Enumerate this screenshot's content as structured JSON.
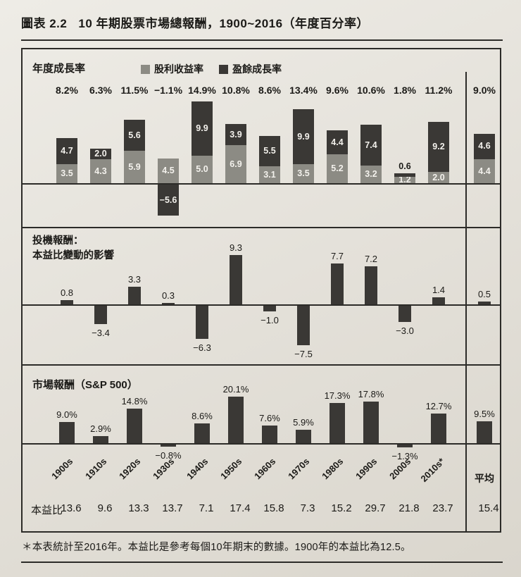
{
  "header": {
    "figure_label": "圖表 2.2",
    "title": "10 年期股票市場總報酬，1900~2016（年度百分率）"
  },
  "page": {
    "footnote": "＊本表統計至2016年。本益比是參考每個10年期末的數據。1900年的本益比為12.5。"
  },
  "colors": {
    "paper": "#e6e3dc",
    "bar_dark": "#3a3835",
    "bar_gray": "#8c8b84",
    "line": "#2c2b28"
  },
  "chart_data": {
    "type": "bar",
    "unit": "%",
    "categories": [
      "1900s",
      "1910s",
      "1920s",
      "1930s",
      "1940s",
      "1950s",
      "1960s",
      "1970s",
      "1980s",
      "1990s",
      "2000s",
      "2010s*",
      "平均"
    ],
    "panels": [
      {
        "name": "annual-growth-rate",
        "title": "年度成長率",
        "legend_note": "stacked: dividend yield (gray, bottom) + earnings growth (dark, top)",
        "totals": [
          "8.2%",
          "6.3%",
          "11.5%",
          "−1.1%",
          "14.9%",
          "10.8%",
          "8.6%",
          "13.4%",
          "9.6%",
          "10.6%",
          "1.8%",
          "11.2%",
          "9.0%"
        ],
        "series": [
          {
            "name": "股利收益率",
            "values": [
              3.5,
              4.3,
              5.9,
              4.5,
              5.0,
              6.9,
              3.1,
              3.5,
              5.2,
              3.2,
              1.2,
              2.0,
              4.4
            ],
            "labels": [
              "3.5",
              "4.3",
              "5.9",
              "4.5",
              "5.0",
              "6.9",
              "3.1",
              "3.5",
              "5.2",
              "3.2",
              "1.2",
              "2.0",
              "4.4"
            ]
          },
          {
            "name": "盈餘成長率",
            "values": [
              4.7,
              2.0,
              5.6,
              -5.6,
              9.9,
              3.9,
              5.5,
              9.9,
              4.4,
              7.4,
              0.6,
              9.2,
              4.6
            ],
            "labels": [
              "4.7",
              "2.0",
              "5.6",
              "−5.6",
              "9.9",
              "3.9",
              "5.5",
              "9.9",
              "4.4",
              "7.4",
              "0.6",
              "9.2",
              "4.6"
            ]
          }
        ]
      },
      {
        "name": "speculative-return",
        "title": "投機報酬：",
        "subtitle": "本益比變動的影響",
        "values": [
          0.8,
          -3.4,
          3.3,
          0.3,
          -6.3,
          9.3,
          -1.0,
          -7.5,
          7.7,
          7.2,
          -3.0,
          1.4,
          0.5
        ],
        "labels": [
          "0.8",
          "−3.4",
          "3.3",
          "0.3",
          "−6.3",
          "9.3",
          "−1.0",
          "−7.5",
          "7.7",
          "7.2",
          "−3.0",
          "1.4",
          "0.5"
        ]
      },
      {
        "name": "market-return",
        "title": "市場報酬（S&P 500）",
        "values": [
          9.0,
          2.9,
          14.8,
          -0.8,
          8.6,
          20.1,
          7.6,
          5.9,
          17.3,
          17.8,
          -1.3,
          12.7,
          9.5
        ],
        "labels": [
          "9.0%",
          "2.9%",
          "14.8%",
          "−0.8%",
          "8.6%",
          "20.1%",
          "7.6%",
          "5.9%",
          "17.3%",
          "17.8%",
          "−1.3%",
          "12.7%",
          "9.5%"
        ]
      }
    ],
    "pe_row": {
      "label": "本益比",
      "values": [
        "13.6",
        "9.6",
        "13.3",
        "13.7",
        "7.1",
        "17.4",
        "15.8",
        "7.3",
        "15.2",
        "29.7",
        "21.8",
        "23.7",
        "15.4"
      ]
    }
  }
}
